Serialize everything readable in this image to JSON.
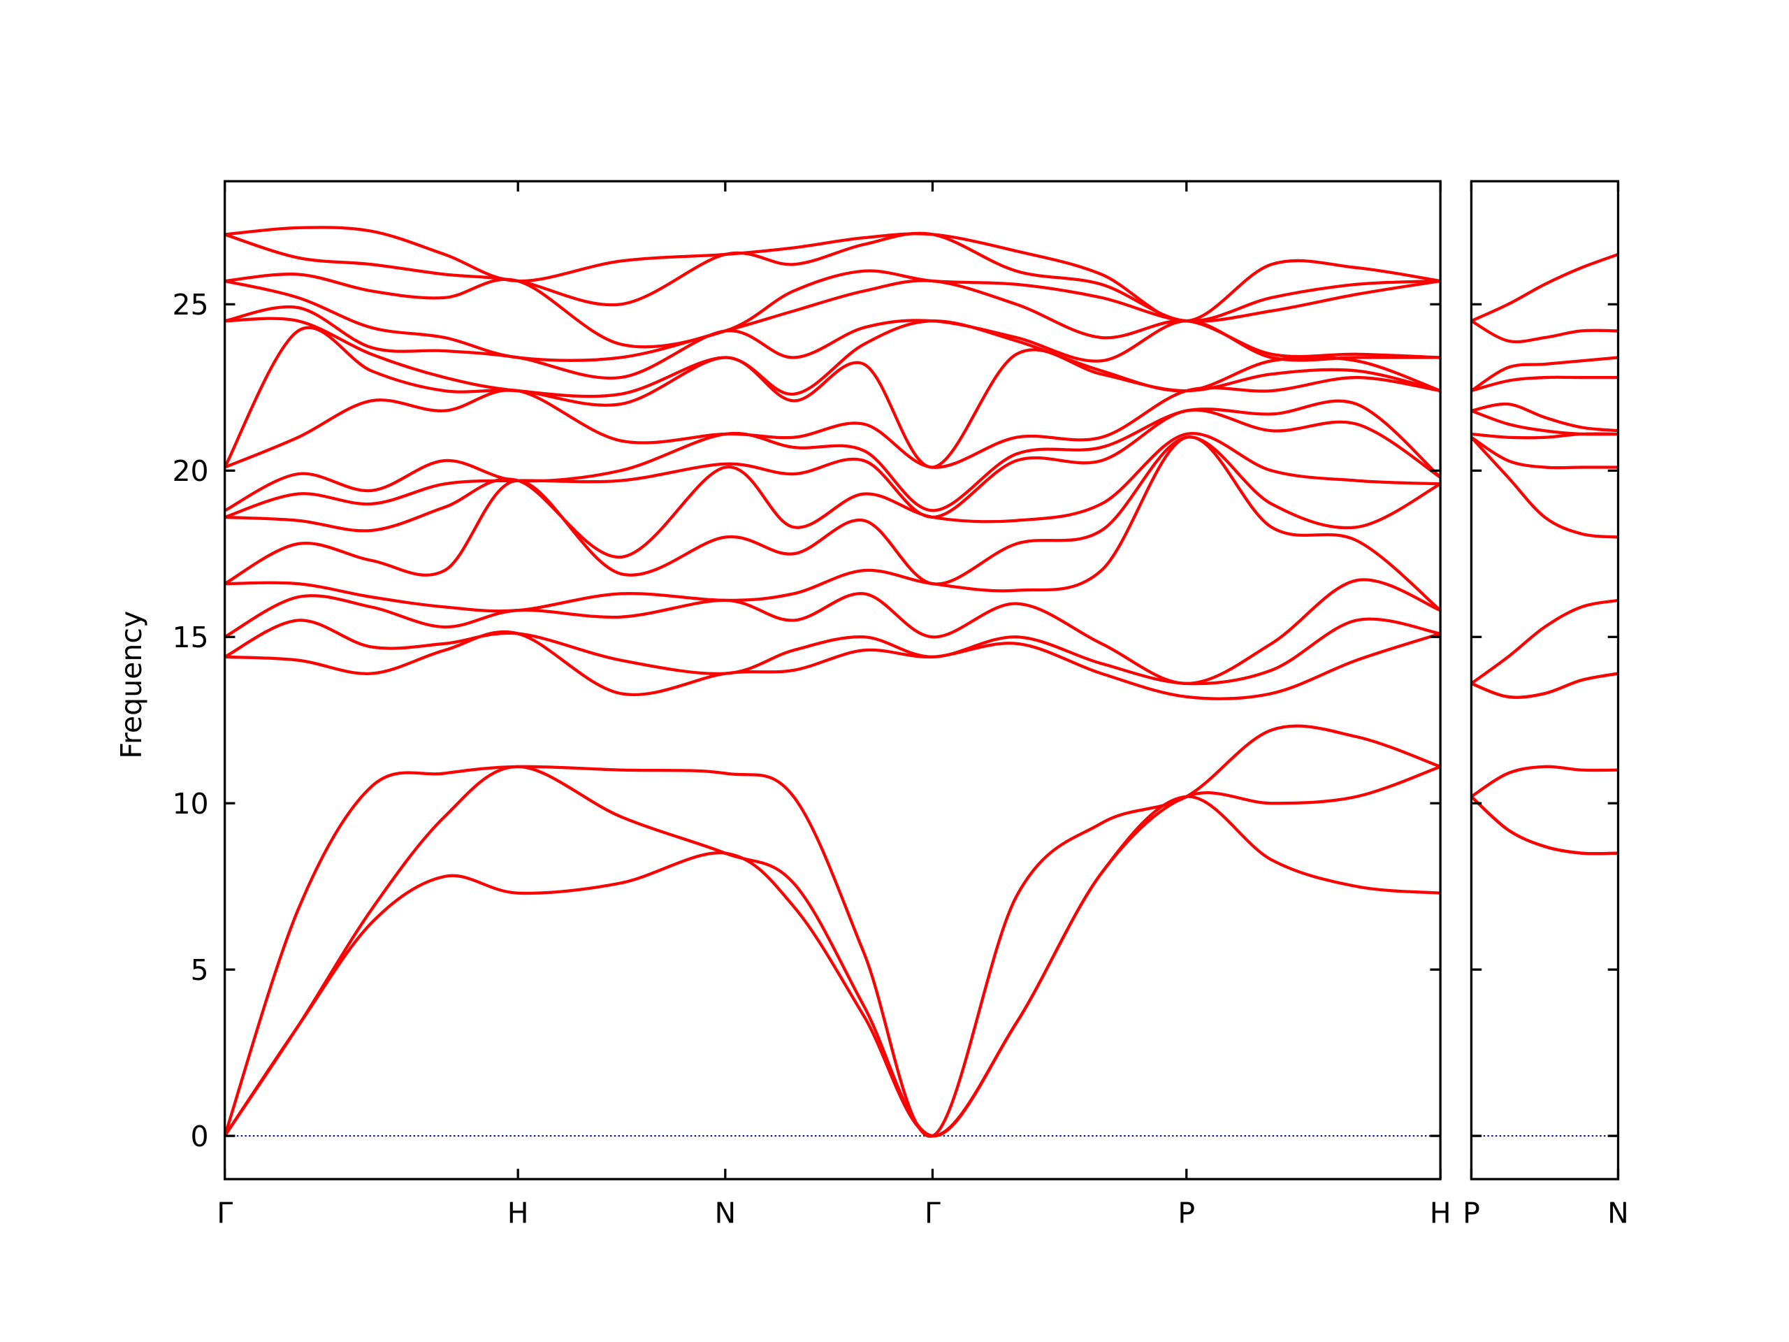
{
  "chart_data": [
    {
      "type": "line",
      "ylabel": "Frequency",
      "color": "#ff0000",
      "zero_line": {
        "value": 0,
        "color": "#00008b"
      },
      "x": [
        0,
        0.25,
        0.5,
        0.75,
        1,
        1.35,
        1.707,
        1.94,
        2.18,
        2.414,
        2.7,
        2.99,
        3.28,
        3.57,
        3.86,
        4.146
      ],
      "xlim": [
        0,
        4.146
      ],
      "xticks": [
        {
          "value": 0,
          "label": "Γ"
        },
        {
          "value": 1,
          "label": "H"
        },
        {
          "value": 1.707,
          "label": "N"
        },
        {
          "value": 2.414,
          "label": "Γ"
        },
        {
          "value": 3.28,
          "label": "P"
        },
        {
          "value": 4.146,
          "label": "H"
        }
      ],
      "ylim": [
        -1.3,
        28.7
      ],
      "yticks": [
        0,
        5,
        10,
        15,
        20,
        25
      ],
      "series": [
        {
          "values": [
            0,
            3.3,
            6.4,
            7.8,
            7.3,
            7.6,
            8.5,
            6.9,
            3.6,
            0,
            3.4,
            7.9,
            10.2,
            8.3,
            7.5,
            7.3
          ]
        },
        {
          "values": [
            0,
            3.3,
            6.8,
            9.6,
            11.1,
            9.6,
            8.5,
            7.6,
            3.9,
            0,
            3.4,
            7.9,
            10.2,
            10.0,
            10.2,
            11.1
          ]
        },
        {
          "values": [
            0,
            6.8,
            10.5,
            10.9,
            11.1,
            11.0,
            10.9,
            10.2,
            5.5,
            0,
            7.2,
            9.4,
            10.2,
            12.2,
            12.0,
            11.1
          ]
        },
        {
          "values": [
            14.4,
            14.3,
            13.9,
            14.6,
            15.1,
            13.3,
            13.9,
            14.0,
            14.6,
            14.4,
            14.8,
            13.9,
            13.2,
            13.3,
            14.3,
            15.1
          ]
        },
        {
          "values": [
            14.4,
            15.5,
            14.7,
            14.8,
            15.1,
            14.3,
            13.9,
            14.6,
            15.0,
            14.4,
            15.0,
            14.2,
            13.6,
            14.0,
            15.5,
            15.1
          ]
        },
        {
          "values": [
            15.0,
            16.2,
            15.9,
            15.3,
            15.8,
            15.6,
            16.1,
            15.5,
            16.3,
            15.0,
            16.0,
            14.8,
            13.6,
            14.8,
            16.7,
            15.8
          ]
        },
        {
          "values": [
            16.6,
            16.6,
            16.2,
            15.9,
            15.8,
            16.3,
            16.1,
            16.3,
            17.0,
            16.6,
            16.4,
            17.0,
            21.0,
            18.3,
            17.9,
            15.8
          ]
        },
        {
          "values": [
            16.6,
            17.8,
            17.3,
            17.0,
            19.7,
            16.9,
            18.0,
            17.5,
            18.5,
            16.6,
            17.8,
            18.2,
            21.0,
            19.0,
            18.3,
            19.6
          ]
        },
        {
          "values": [
            18.6,
            18.5,
            18.2,
            18.9,
            19.7,
            17.4,
            20.1,
            18.3,
            19.3,
            18.6,
            18.5,
            19.0,
            21.1,
            20.0,
            19.7,
            19.6
          ]
        },
        {
          "values": [
            18.6,
            19.3,
            19.0,
            19.6,
            19.7,
            19.7,
            20.2,
            19.9,
            20.3,
            18.6,
            20.3,
            20.3,
            21.8,
            21.2,
            21.4,
            19.8
          ]
        },
        {
          "values": [
            18.8,
            19.9,
            19.4,
            20.3,
            19.7,
            20.0,
            21.1,
            20.7,
            20.6,
            18.8,
            20.5,
            20.7,
            21.8,
            21.7,
            22.0,
            19.8
          ]
        },
        {
          "values": [
            20.1,
            21.0,
            22.1,
            21.8,
            22.4,
            20.9,
            21.1,
            21.0,
            21.4,
            20.1,
            21.0,
            21.0,
            22.4,
            22.4,
            22.8,
            22.4
          ]
        },
        {
          "values": [
            20.1,
            24.2,
            23.0,
            22.4,
            22.4,
            22.0,
            23.4,
            22.1,
            23.2,
            20.1,
            23.5,
            22.9,
            22.4,
            22.9,
            23.0,
            22.4
          ]
        },
        {
          "values": [
            24.5,
            24.5,
            23.5,
            22.8,
            22.4,
            22.3,
            23.4,
            22.3,
            23.8,
            24.5,
            23.9,
            23.0,
            22.4,
            23.3,
            23.3,
            22.4
          ]
        },
        {
          "values": [
            24.5,
            24.9,
            23.7,
            23.6,
            23.4,
            22.8,
            24.2,
            23.4,
            24.3,
            24.5,
            24.0,
            23.3,
            24.5,
            23.4,
            23.4,
            23.4
          ]
        },
        {
          "values": [
            25.7,
            25.2,
            24.3,
            24.0,
            23.4,
            23.4,
            24.2,
            24.8,
            25.4,
            25.7,
            25.0,
            24.0,
            24.5,
            23.5,
            23.5,
            23.4
          ]
        },
        {
          "values": [
            25.7,
            25.9,
            25.4,
            25.2,
            25.7,
            23.8,
            24.2,
            25.4,
            26.0,
            25.7,
            25.6,
            25.2,
            24.5,
            24.8,
            25.3,
            25.7
          ]
        },
        {
          "values": [
            27.1,
            26.4,
            26.2,
            25.9,
            25.7,
            25.0,
            26.5,
            26.2,
            26.8,
            27.1,
            26.0,
            25.6,
            24.5,
            25.2,
            25.6,
            25.7
          ]
        },
        {
          "values": [
            27.1,
            27.3,
            27.2,
            26.5,
            25.7,
            26.3,
            26.5,
            26.7,
            27.0,
            27.1,
            26.6,
            25.9,
            24.5,
            26.2,
            26.1,
            25.7
          ]
        }
      ]
    },
    {
      "type": "line",
      "color": "#ff0000",
      "zero_line": {
        "value": 0,
        "color": "#00008b"
      },
      "x": [
        0,
        0.125,
        0.25,
        0.375,
        0.5
      ],
      "xlim": [
        0,
        0.5
      ],
      "xticks": [
        {
          "value": 0,
          "label": "P"
        },
        {
          "value": 0.5,
          "label": "N"
        }
      ],
      "ylim": [
        -1.3,
        28.7
      ],
      "yticks": [
        0,
        5,
        10,
        15,
        20,
        25
      ],
      "series": [
        {
          "values": [
            10.2,
            9.2,
            8.7,
            8.5,
            8.5
          ]
        },
        {
          "values": [
            10.2,
            9.2,
            8.7,
            8.5,
            8.5
          ]
        },
        {
          "values": [
            10.2,
            10.9,
            11.1,
            11.0,
            11.0
          ]
        },
        {
          "values": [
            13.6,
            13.2,
            13.3,
            13.7,
            13.9
          ]
        },
        {
          "values": [
            13.6,
            13.2,
            13.3,
            13.7,
            13.9
          ]
        },
        {
          "values": [
            13.6,
            14.4,
            15.3,
            15.9,
            16.1
          ]
        },
        {
          "values": [
            21.0,
            19.8,
            18.6,
            18.1,
            18.0
          ]
        },
        {
          "values": [
            21.0,
            20.3,
            20.1,
            20.1,
            20.1
          ]
        },
        {
          "values": [
            21.1,
            21.0,
            21.0,
            21.1,
            21.1
          ]
        },
        {
          "values": [
            21.8,
            21.4,
            21.2,
            21.1,
            21.1
          ]
        },
        {
          "values": [
            21.8,
            22.0,
            21.6,
            21.3,
            21.2
          ]
        },
        {
          "values": [
            22.4,
            22.7,
            22.8,
            22.8,
            22.8
          ]
        },
        {
          "values": [
            22.4,
            23.1,
            23.2,
            23.3,
            23.4
          ]
        },
        {
          "values": [
            24.5,
            23.9,
            24.0,
            24.2,
            24.2
          ]
        },
        {
          "values": [
            24.5,
            25.0,
            25.6,
            26.1,
            26.5
          ]
        }
      ]
    }
  ]
}
